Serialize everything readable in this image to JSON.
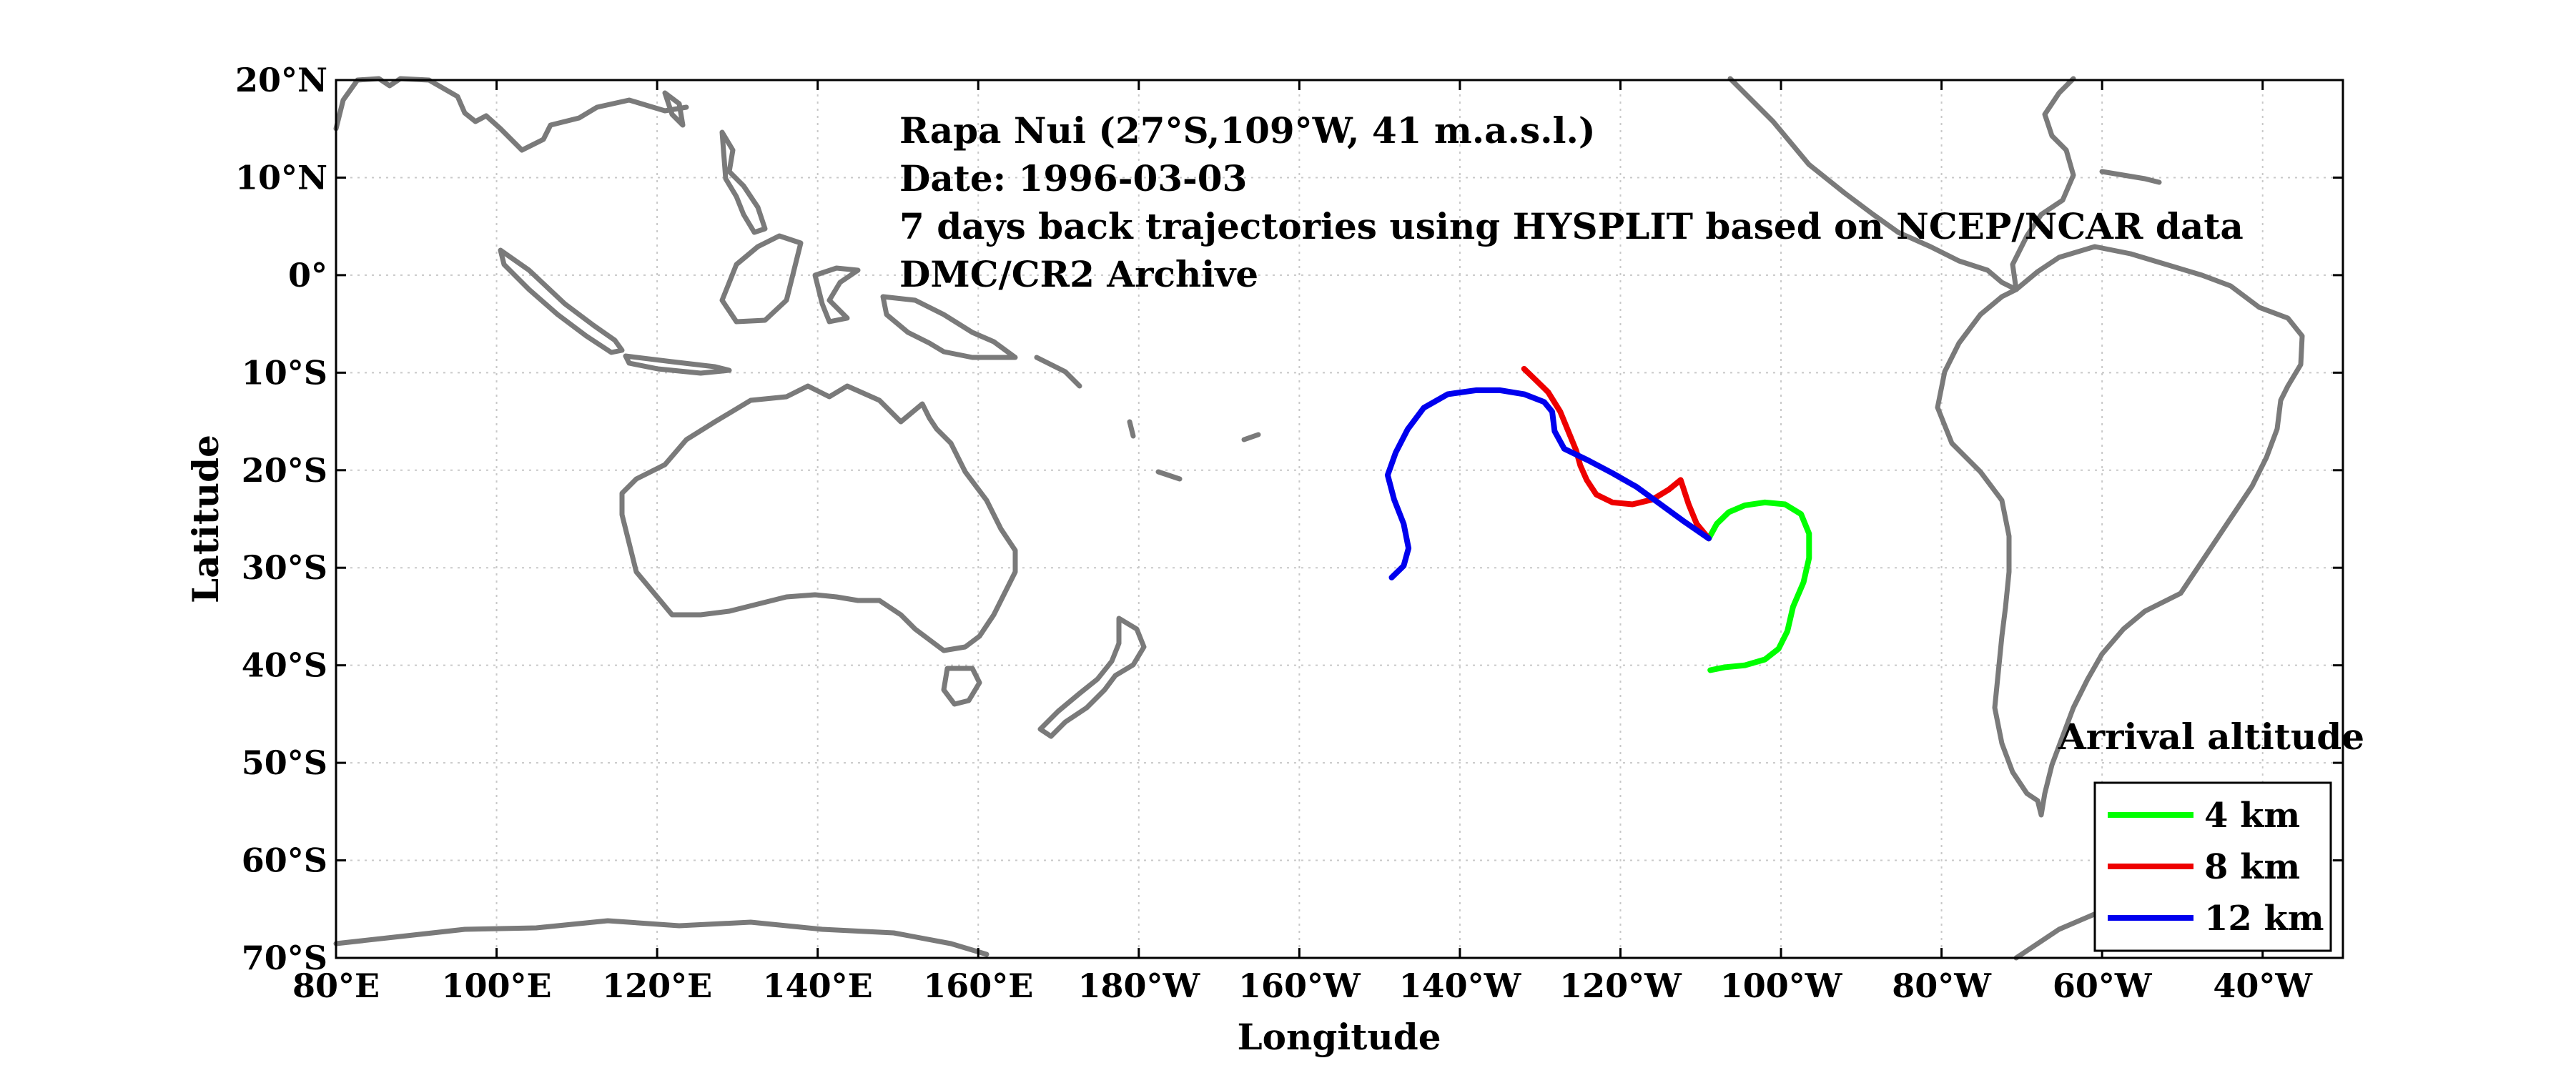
{
  "chart_data": {
    "type": "line",
    "title": "",
    "xlabel": "Longitude",
    "ylabel": "Latitude",
    "xlim": [
      80,
      330
    ],
    "ylim": [
      -70,
      20
    ],
    "x_ticks": [
      {
        "v": 80,
        "label": "80°E"
      },
      {
        "v": 100,
        "label": "100°E"
      },
      {
        "v": 120,
        "label": "120°E"
      },
      {
        "v": 140,
        "label": "140°E"
      },
      {
        "v": 160,
        "label": "160°E"
      },
      {
        "v": 180,
        "label": "180°W"
      },
      {
        "v": 200,
        "label": "160°W"
      },
      {
        "v": 220,
        "label": "140°W"
      },
      {
        "v": 240,
        "label": "120°W"
      },
      {
        "v": 260,
        "label": "100°W"
      },
      {
        "v": 280,
        "label": "80°W"
      },
      {
        "v": 300,
        "label": "60°W"
      },
      {
        "v": 320,
        "label": "40°W"
      }
    ],
    "y_ticks": [
      {
        "v": 20,
        "label": "20°N"
      },
      {
        "v": 10,
        "label": "10°N"
      },
      {
        "v": 0,
        "label": "0°"
      },
      {
        "v": -10,
        "label": "10°S"
      },
      {
        "v": -20,
        "label": "20°S"
      },
      {
        "v": -30,
        "label": "30°S"
      },
      {
        "v": -40,
        "label": "40°S"
      },
      {
        "v": -50,
        "label": "50°S"
      },
      {
        "v": -60,
        "label": "60°S"
      },
      {
        "v": -70,
        "label": "70°S"
      }
    ],
    "grid": true,
    "annotations": [
      "Rapa Nui (27°S,109°W, 41 m.a.s.l.)",
      "Date: 1996-03-03",
      "7 days back trajectories using HYSPLIT based on NCEP/NCAR data",
      "DMC/CR2 Archive"
    ],
    "legend": {
      "title": "Arrival altitude",
      "placement": "bottom-right"
    },
    "series": [
      {
        "name": "4 km",
        "color": "#00ff00",
        "points": [
          [
            251,
            -27
          ],
          [
            252,
            -25.5
          ],
          [
            253.5,
            -24.3
          ],
          [
            255.5,
            -23.6
          ],
          [
            258,
            -23.3
          ],
          [
            260.5,
            -23.5
          ],
          [
            262.5,
            -24.5
          ],
          [
            263.5,
            -26.5
          ],
          [
            263.5,
            -29
          ],
          [
            262.8,
            -31.5
          ],
          [
            261.5,
            -34
          ],
          [
            260.8,
            -36.5
          ],
          [
            259.7,
            -38.3
          ],
          [
            258,
            -39.4
          ],
          [
            255.5,
            -40
          ],
          [
            253,
            -40.2
          ],
          [
            251.2,
            -40.5
          ]
        ]
      },
      {
        "name": "8 km",
        "color": "#ee0000",
        "points": [
          [
            251,
            -27
          ],
          [
            249.5,
            -25.5
          ],
          [
            248.5,
            -23.5
          ],
          [
            247.5,
            -21
          ],
          [
            246,
            -22
          ],
          [
            244,
            -23
          ],
          [
            241.5,
            -23.5
          ],
          [
            239,
            -23.3
          ],
          [
            237,
            -22.5
          ],
          [
            235.8,
            -21
          ],
          [
            235,
            -19.5
          ],
          [
            234.5,
            -18
          ],
          [
            233.5,
            -16
          ],
          [
            232.5,
            -14
          ],
          [
            231,
            -12
          ],
          [
            229.5,
            -10.8
          ],
          [
            228,
            -9.6
          ]
        ]
      },
      {
        "name": "12 km",
        "color": "#0000ee",
        "points": [
          [
            251,
            -27
          ],
          [
            248,
            -25.3
          ],
          [
            245,
            -23.5
          ],
          [
            242,
            -21.7
          ],
          [
            239,
            -20.3
          ],
          [
            236,
            -19
          ],
          [
            233,
            -17.8
          ],
          [
            231.8,
            -16
          ],
          [
            231.5,
            -14
          ],
          [
            230.5,
            -13
          ],
          [
            228,
            -12.2
          ],
          [
            225,
            -11.8
          ],
          [
            222,
            -11.8
          ],
          [
            218.5,
            -12.2
          ],
          [
            215.5,
            -13.6
          ],
          [
            213.5,
            -15.8
          ],
          [
            212,
            -18.2
          ],
          [
            211,
            -20.5
          ],
          [
            211.8,
            -23
          ],
          [
            213,
            -25.5
          ],
          [
            213.6,
            -28
          ],
          [
            213,
            -29.8
          ],
          [
            211.5,
            -31
          ]
        ]
      }
    ]
  }
}
